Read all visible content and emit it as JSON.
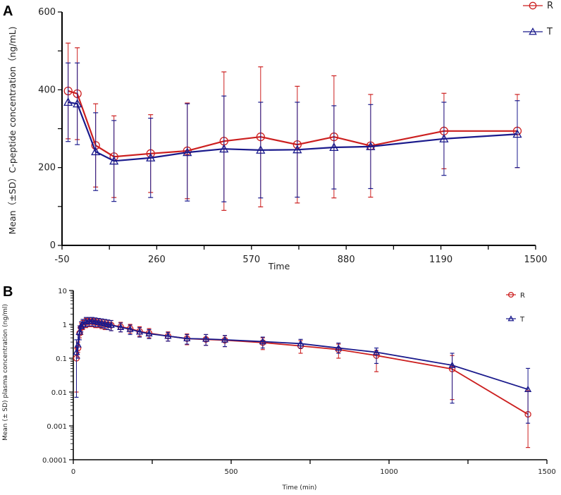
{
  "colors": {
    "R": "#cc1f1f",
    "T": "#1a1a8c"
  },
  "chart_data": [
    {
      "panel": "A",
      "type": "line",
      "xlabel": "Time",
      "ylabel": "Mean（±SD）C-peptide concentration（ng/mL)",
      "xlim": [
        -50,
        1500
      ],
      "ylim": [
        0,
        600
      ],
      "xticks": [
        "-50",
        "260",
        "570",
        "880",
        "1190",
        "1500"
      ],
      "xtick_values": [
        -50,
        260,
        570,
        880,
        1190,
        1500
      ],
      "yticks": [
        "0",
        "200",
        "400",
        "600"
      ],
      "ytick_values": [
        0,
        200,
        400,
        600
      ],
      "legend_position": "top-right",
      "x": [
        -30,
        0,
        60,
        120,
        240,
        360,
        480,
        600,
        720,
        840,
        960,
        1200,
        1440
      ],
      "series": [
        {
          "name": "R",
          "marker": "circle",
          "values": [
            397,
            390,
            257,
            228,
            236,
            243,
            268,
            279,
            259,
            279,
            256,
            294,
            294
          ],
          "sd": [
            123,
            118,
            107,
            105,
            100,
            123,
            178,
            180,
            150,
            157,
            132,
            97,
            94
          ]
        },
        {
          "name": "T",
          "marker": "triangle",
          "values": [
            368,
            364,
            241,
            217,
            225,
            239,
            248,
            245,
            246,
            252,
            254,
            274,
            286
          ],
          "sd": [
            101,
            105,
            100,
            104,
            102,
            125,
            136,
            123,
            122,
            107,
            108,
            94,
            86
          ]
        }
      ]
    },
    {
      "panel": "B",
      "type": "line",
      "yscale": "log",
      "xlabel": "Time (min)",
      "ylabel": "Mean (± SD) plasma concentration (ng/ml)",
      "xlim": [
        0,
        1500
      ],
      "ylim": [
        0.0001,
        10
      ],
      "xticks": [
        "0",
        "500",
        "1000",
        "1500"
      ],
      "xtick_values": [
        0,
        500,
        1000,
        1500
      ],
      "yticks": [
        "10",
        "1",
        "0.1",
        "0.01",
        "0.001",
        "0.0001"
      ],
      "ytick_values": [
        10,
        1,
        0.1,
        0.01,
        0.001,
        0.0001
      ],
      "legend_position": "top-right",
      "x": [
        10,
        15,
        20,
        25,
        30,
        40,
        50,
        60,
        70,
        80,
        90,
        100,
        110,
        120,
        150,
        180,
        210,
        240,
        300,
        360,
        420,
        480,
        600,
        720,
        840,
        960,
        1200,
        1440
      ],
      "series": [
        {
          "name": "R",
          "marker": "circle",
          "values": [
            0.1,
            0.2,
            0.55,
            0.8,
            0.95,
            1.15,
            1.2,
            1.2,
            1.15,
            1.1,
            1.05,
            1.0,
            0.98,
            0.95,
            0.85,
            0.75,
            0.62,
            0.55,
            0.45,
            0.38,
            0.36,
            0.34,
            0.29,
            0.23,
            0.18,
            0.12,
            0.048,
            0.0022
          ],
          "lower": [
            0.01,
            0.15,
            0.4,
            0.5,
            0.7,
            0.8,
            0.85,
            0.85,
            0.8,
            0.8,
            0.75,
            0.7,
            0.7,
            0.65,
            0.6,
            0.55,
            0.45,
            0.4,
            0.32,
            0.25,
            0.24,
            0.22,
            0.18,
            0.14,
            0.1,
            0.04,
            0.006,
            0.00023
          ],
          "upper": [
            0.2,
            0.3,
            0.8,
            1.1,
            1.3,
            1.5,
            1.55,
            1.55,
            1.5,
            1.45,
            1.4,
            1.35,
            1.3,
            1.3,
            1.15,
            1.0,
            0.85,
            0.75,
            0.6,
            0.52,
            0.5,
            0.46,
            0.4,
            0.33,
            0.26,
            0.17,
            0.12,
            0.011
          ]
        },
        {
          "name": "T",
          "marker": "triangle",
          "values": [
            0.15,
            0.25,
            0.6,
            0.9,
            1.0,
            1.2,
            1.25,
            1.25,
            1.2,
            1.15,
            1.1,
            1.05,
            1.0,
            0.95,
            0.82,
            0.72,
            0.6,
            0.53,
            0.45,
            0.38,
            0.37,
            0.35,
            0.31,
            0.27,
            0.2,
            0.15,
            0.062,
            0.012
          ],
          "lower": [
            0.007,
            0.1,
            0.35,
            0.6,
            0.75,
            0.85,
            0.9,
            0.9,
            0.85,
            0.85,
            0.8,
            0.75,
            0.7,
            0.65,
            0.6,
            0.5,
            0.42,
            0.38,
            0.32,
            0.26,
            0.24,
            0.22,
            0.2,
            0.2,
            0.14,
            0.07,
            0.0047,
            0.0012
          ],
          "upper": [
            0.35,
            0.5,
            0.9,
            1.2,
            1.4,
            1.6,
            1.6,
            1.6,
            1.55,
            1.5,
            1.45,
            1.4,
            1.35,
            1.3,
            1.1,
            0.95,
            0.8,
            0.7,
            0.58,
            0.5,
            0.5,
            0.47,
            0.42,
            0.36,
            0.28,
            0.2,
            0.14,
            0.05
          ]
        }
      ]
    }
  ],
  "panels": {
    "A": "A",
    "B": "B"
  }
}
